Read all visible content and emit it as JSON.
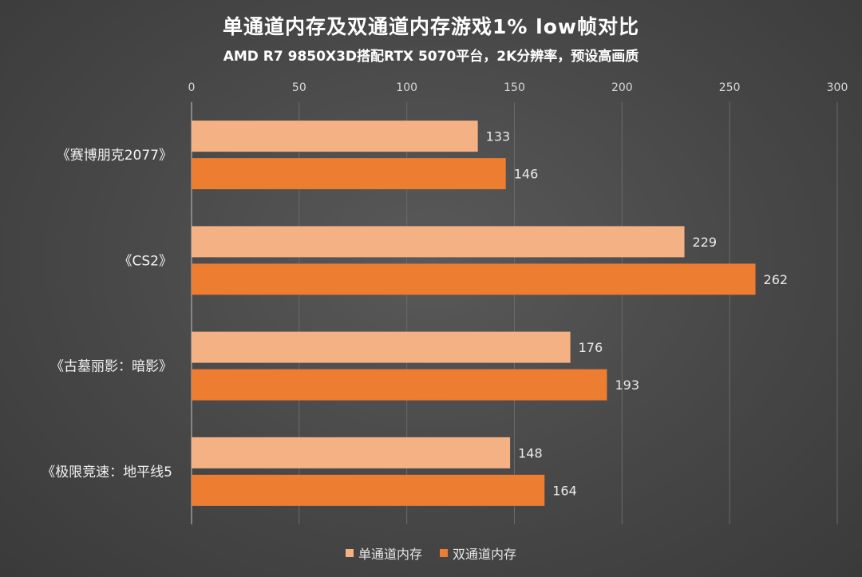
{
  "chart_data": {
    "type": "bar",
    "orientation": "horizontal",
    "title": "单通道内存及双通道内存游戏1% low帧对比",
    "subtitle": "AMD R7 9850X3D搭配RTX 5070平台，2K分辨率，预设高画质",
    "categories": [
      "《赛博朋克2077》",
      "《CS2》",
      "《古墓丽影：暗影》",
      "《极限竞速：地平线5"
    ],
    "series": [
      {
        "name": "单通道内存",
        "values": [
          133,
          229,
          176,
          148
        ],
        "color": "#f4b183"
      },
      {
        "name": "双通道内存",
        "values": [
          146,
          262,
          193,
          164
        ],
        "color": "#ed7d31"
      }
    ],
    "xlim": [
      0,
      300
    ],
    "xticks": [
      0,
      50,
      100,
      150,
      200,
      250,
      300
    ],
    "axis_position": "top",
    "grid": true,
    "legend": "bottom"
  }
}
